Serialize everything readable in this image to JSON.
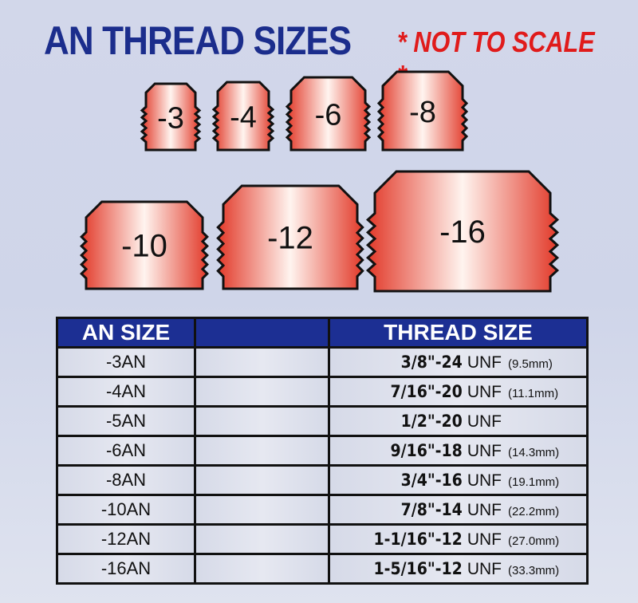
{
  "title": "AN THREAD SIZES",
  "note": "* NOT TO SCALE *",
  "fittings": [
    "-3",
    "-4",
    "-6",
    "-8",
    "-10",
    "-12",
    "-16"
  ],
  "colors": {
    "title": "#1b2d8c",
    "note": "#e01b1b",
    "header": "#1c2f93",
    "fitting_edge": "#e23a2a",
    "fitting_center": "#fff4ef"
  },
  "table": {
    "headers": [
      "AN SIZE",
      "",
      "THREAD SIZE"
    ],
    "rows": [
      {
        "an": "-3AN",
        "thread": "3/8\"-24",
        "unf": "UNF",
        "mm": "(9.5mm)"
      },
      {
        "an": "-4AN",
        "thread": "7/16\"-20",
        "unf": "UNF",
        "mm": "(11.1mm)"
      },
      {
        "an": "-5AN",
        "thread": "1/2\"-20",
        "unf": "UNF",
        "mm": ""
      },
      {
        "an": "-6AN",
        "thread": "9/16\"-18",
        "unf": "UNF",
        "mm": "(14.3mm)"
      },
      {
        "an": "-8AN",
        "thread": "3/4\"-16",
        "unf": "UNF",
        "mm": "(19.1mm)"
      },
      {
        "an": "-10AN",
        "thread": "7/8\"-14",
        "unf": "UNF",
        "mm": "(22.2mm)"
      },
      {
        "an": "-12AN",
        "thread": "1-1/16\"-12",
        "unf": "UNF",
        "mm": "(27.0mm)"
      },
      {
        "an": "-16AN",
        "thread": "1-5/16\"-12",
        "unf": "UNF",
        "mm": "(33.3mm)"
      }
    ]
  }
}
